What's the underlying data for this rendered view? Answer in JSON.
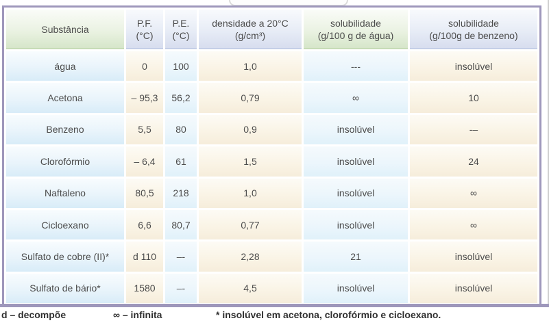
{
  "table": {
    "columns": [
      {
        "key": "substancia",
        "label": "Substância",
        "sub": "",
        "theme": "green"
      },
      {
        "key": "pf",
        "label": "P.F.",
        "sub": "(°C)",
        "theme": "lavender"
      },
      {
        "key": "pe",
        "label": "P.E.",
        "sub": "(°C)",
        "theme": "lavender"
      },
      {
        "key": "densidade",
        "label": "densidade a 20°C",
        "sub": "(g/cm³)",
        "theme": "lavender"
      },
      {
        "key": "solubilidade-agua",
        "label": "solubilidade",
        "sub": "(g/100 g de água)",
        "theme": "green"
      },
      {
        "key": "solubilidade-benzeno",
        "label": "solubilidade",
        "sub": "(g/100g de benzeno)",
        "theme": "lavender"
      }
    ],
    "rows": [
      [
        "água",
        "0",
        "100",
        "1,0",
        "---",
        "insolúvel"
      ],
      [
        "Acetona",
        "– 95,3",
        "56,2",
        "0,79",
        "∞",
        "10"
      ],
      [
        "Benzeno",
        "5,5",
        "80",
        "0,9",
        "insolúvel",
        "-–"
      ],
      [
        "Clorofórmio",
        "– 6,4",
        "61",
        "1,5",
        "insolúvel",
        "24"
      ],
      [
        "Naftaleno",
        "80,5",
        "218",
        "1,0",
        "insolúvel",
        "∞"
      ],
      [
        "Cicloexano",
        "6,6",
        "80,7",
        "0,77",
        "insolúvel",
        "∞"
      ],
      [
        "Sulfato de cobre (II)*",
        "d 110",
        "–-",
        "2,28",
        "21",
        "insolúvel"
      ],
      [
        "Sulfato de bário*",
        "1580",
        "–-",
        "4,5",
        "insolúvel",
        "insolúvel"
      ]
    ]
  },
  "legend": {
    "decompoe": "d – decompõe",
    "infinita": "∞ – infinita",
    "insoluvel_note": "* insolúvel em acetona, clorofórmio e cicloexano."
  },
  "colors": {
    "frame_border": "#9e97bb",
    "header_green": "#d4e5c8",
    "header_lavender": "#d6dcee",
    "body_blue": "#d8ecf8",
    "body_cream": "#f6eddb",
    "text": "#4c4c4c",
    "legend_text": "#2f2f2f"
  }
}
